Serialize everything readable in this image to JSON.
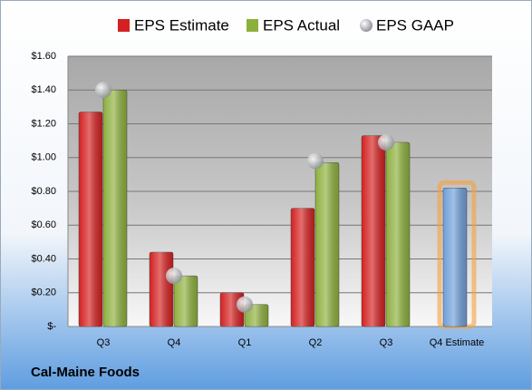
{
  "chart_data": {
    "type": "bar",
    "categories": [
      "Q3",
      "Q4",
      "Q1",
      "Q2",
      "Q3",
      "Q4 Estimate"
    ],
    "series": [
      {
        "name": "EPS Estimate",
        "color": "#d42020",
        "kind": "bar",
        "values": [
          1.27,
          0.44,
          0.2,
          0.7,
          1.13,
          0.82
        ]
      },
      {
        "name": "EPS Actual",
        "color": "#8db03c",
        "kind": "bar",
        "values": [
          1.4,
          0.3,
          0.13,
          0.97,
          1.09,
          null
        ]
      },
      {
        "name": "EPS GAAP",
        "color": "#b8bcc4",
        "kind": "marker",
        "values": [
          1.4,
          0.3,
          0.13,
          0.98,
          1.09,
          null
        ]
      }
    ],
    "highlight_color": "#6f9fd8",
    "highlight_glow": "#f5a040",
    "ylim": [
      0,
      1.6
    ],
    "yticks": [
      {
        "value": 0,
        "label": "$-"
      },
      {
        "value": 0.2,
        "label": "$0.20"
      },
      {
        "value": 0.4,
        "label": "$0.40"
      },
      {
        "value": 0.6,
        "label": "$0.60"
      },
      {
        "value": 0.8,
        "label": "$0.80"
      },
      {
        "value": 1.0,
        "label": "$1.00"
      },
      {
        "value": 1.2,
        "label": "$1.20"
      },
      {
        "value": 1.4,
        "label": "$1.40"
      },
      {
        "value": 1.6,
        "label": "$1.60"
      }
    ],
    "grid": true,
    "footer": "Cal-Maine Foods"
  }
}
